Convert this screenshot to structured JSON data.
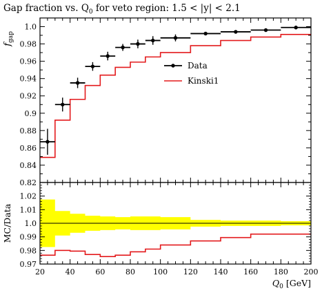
{
  "title_text": "Gap fraction vs. Q",
  "title_sub": "0",
  "title_rest": " for veto region: 1.5 < |y| < 2.1",
  "chart_data": [
    {
      "type": "line",
      "panel": "main",
      "ylabel": "f",
      "ylabel_sub": "gap",
      "ylim": [
        0.82,
        1.01
      ],
      "yticks": [
        0.82,
        0.84,
        0.86,
        0.88,
        0.9,
        0.92,
        0.94,
        0.96,
        0.98,
        1.0
      ],
      "ytick_labels": [
        "0.82",
        "0.84",
        "0.86",
        "0.88",
        "0.9",
        "0.92",
        "0.94",
        "0.96",
        "0.98",
        "1.0"
      ],
      "legend": "right",
      "series": [
        {
          "name": "Data",
          "color": "#000000",
          "style": "points",
          "points": [
            {
              "xlo": 20,
              "xhi": 30,
              "x": 25,
              "y": 0.867,
              "err": 0.015
            },
            {
              "xlo": 30,
              "xhi": 40,
              "x": 35,
              "y": 0.91,
              "err": 0.008
            },
            {
              "xlo": 40,
              "xhi": 50,
              "x": 45,
              "y": 0.935,
              "err": 0.006
            },
            {
              "xlo": 50,
              "xhi": 60,
              "x": 55,
              "y": 0.954,
              "err": 0.005
            },
            {
              "xlo": 60,
              "xhi": 70,
              "x": 65,
              "y": 0.966,
              "err": 0.005
            },
            {
              "xlo": 70,
              "xhi": 80,
              "x": 75,
              "y": 0.976,
              "err": 0.004
            },
            {
              "xlo": 80,
              "xhi": 90,
              "x": 85,
              "y": 0.98,
              "err": 0.005
            },
            {
              "xlo": 90,
              "xhi": 100,
              "x": 95,
              "y": 0.984,
              "err": 0.005
            },
            {
              "xlo": 100,
              "xhi": 120,
              "x": 110,
              "y": 0.987,
              "err": 0.004
            },
            {
              "xlo": 120,
              "xhi": 140,
              "x": 130,
              "y": 0.992,
              "err": 0.002
            },
            {
              "xlo": 140,
              "xhi": 160,
              "x": 150,
              "y": 0.994,
              "err": 0.002
            },
            {
              "xlo": 160,
              "xhi": 180,
              "x": 170,
              "y": 0.996,
              "err": 0.002
            },
            {
              "xlo": 180,
              "xhi": 200,
              "x": 190,
              "y": 0.999,
              "err": 0.002
            }
          ]
        },
        {
          "name": "Kinski1",
          "color": "#e31a1c",
          "style": "step",
          "edges": [
            20,
            30,
            40,
            50,
            60,
            70,
            80,
            90,
            100,
            120,
            140,
            160,
            180,
            200
          ],
          "values": [
            0.849,
            0.892,
            0.916,
            0.932,
            0.944,
            0.953,
            0.959,
            0.965,
            0.97,
            0.978,
            0.984,
            0.988,
            0.991
          ]
        }
      ]
    },
    {
      "type": "line",
      "panel": "ratio",
      "xlabel": "Q",
      "xlabel_sub": "0",
      "xlabel_unit": " [GeV]",
      "ylabel": "MC/Data",
      "xlim": [
        20,
        200
      ],
      "ylim": [
        0.97,
        1.03
      ],
      "xticks": [
        20,
        40,
        60,
        80,
        100,
        120,
        140,
        160,
        180,
        200
      ],
      "xtick_labels": [
        "20",
        "40",
        "60",
        "80",
        "100",
        "120",
        "140",
        "160",
        "180",
        "200"
      ],
      "yticks": [
        0.97,
        0.98,
        0.99,
        1.0,
        1.01,
        1.02
      ],
      "ytick_labels": [
        "0.97",
        "0.98",
        "0.99",
        "1.0",
        "1.01",
        "1.02"
      ],
      "band": {
        "name": "Data uncertainty",
        "color": "#ffff00",
        "edges": [
          20,
          30,
          40,
          50,
          60,
          70,
          80,
          90,
          100,
          120,
          140,
          160,
          180,
          200
        ],
        "halfwidth": [
          0.0175,
          0.009,
          0.007,
          0.0055,
          0.005,
          0.0045,
          0.005,
          0.005,
          0.0045,
          0.0025,
          0.002,
          0.002,
          0.0015
        ]
      },
      "series": [
        {
          "name": "Kinski1",
          "color": "#e31a1c",
          "style": "step",
          "edges": [
            20,
            30,
            40,
            50,
            60,
            70,
            80,
            90,
            100,
            120,
            140,
            160,
            180,
            200
          ],
          "values": [
            0.9765,
            0.98,
            0.9795,
            0.977,
            0.9755,
            0.9765,
            0.979,
            0.981,
            0.984,
            0.987,
            0.9895,
            0.992,
            0.992
          ]
        }
      ]
    }
  ]
}
